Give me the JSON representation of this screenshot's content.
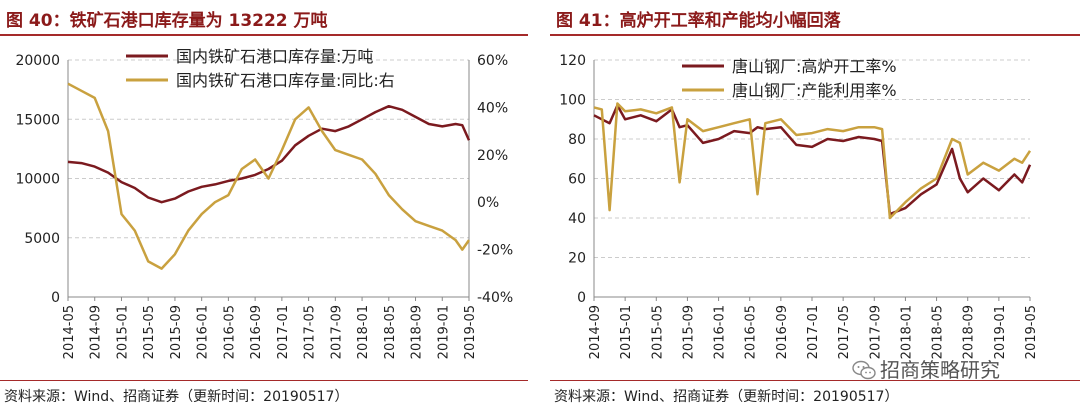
{
  "left": {
    "title": "图 40：铁矿石港口库存量为 13222 万吨",
    "source": "资料来源：Wind、招商证券（更新时间：20190517）"
  },
  "right": {
    "title": "图 41：高炉开工率和产能均小幅回落",
    "source": "资料来源：Wind、招商证券（更新时间：20190517）"
  },
  "watermark": "招商策略研究",
  "colors": {
    "primary": "#7b1a1f",
    "secondary": "#c9a13f",
    "title": "#8b1a1a",
    "grid": "#cccccc"
  },
  "chart_data": [
    {
      "type": "line",
      "title": "图 40：铁矿石港口库存量为 13222 万吨",
      "x_ticks": [
        "2014-05",
        "2014-09",
        "2015-01",
        "2015-05",
        "2015-09",
        "2016-01",
        "2016-05",
        "2016-09",
        "2017-01",
        "2017-05",
        "2017-09",
        "2018-01",
        "2018-05",
        "2018-09",
        "2019-01",
        "2019-05"
      ],
      "y_left": {
        "lim": [
          0,
          20000
        ],
        "ticks": [
          0,
          5000,
          10000,
          15000,
          20000
        ]
      },
      "y_right": {
        "lim": [
          -40,
          60
        ],
        "ticks": [
          "-40%",
          "-20%",
          "0%",
          "20%",
          "40%",
          "60%"
        ]
      },
      "legend_position": "top-right",
      "series": [
        {
          "name": "国内铁矿石港口库存量:万吨",
          "axis": "left",
          "color": "#7b1a1f",
          "x": [
            "2014-05",
            "2014-07",
            "2014-09",
            "2014-11",
            "2015-01",
            "2015-03",
            "2015-05",
            "2015-07",
            "2015-09",
            "2015-11",
            "2016-01",
            "2016-03",
            "2016-05",
            "2016-07",
            "2016-09",
            "2016-11",
            "2017-01",
            "2017-03",
            "2017-05",
            "2017-07",
            "2017-09",
            "2017-11",
            "2018-01",
            "2018-03",
            "2018-05",
            "2018-07",
            "2018-09",
            "2018-11",
            "2019-01",
            "2019-03",
            "2019-04",
            "2019-05"
          ],
          "values": [
            11400,
            11300,
            11000,
            10500,
            9700,
            9200,
            8400,
            8000,
            8300,
            8900,
            9300,
            9500,
            9800,
            10000,
            10300,
            10800,
            11500,
            12800,
            13600,
            14200,
            14000,
            14400,
            15000,
            15600,
            16100,
            15800,
            15200,
            14600,
            14400,
            14600,
            14500,
            13222
          ]
        },
        {
          "name": "国内铁矿石港口库存量:同比:右",
          "axis": "right",
          "color": "#c9a13f",
          "x": [
            "2014-05",
            "2014-07",
            "2014-09",
            "2014-11",
            "2015-01",
            "2015-03",
            "2015-05",
            "2015-07",
            "2015-09",
            "2015-11",
            "2016-01",
            "2016-03",
            "2016-05",
            "2016-07",
            "2016-09",
            "2016-11",
            "2017-01",
            "2017-03",
            "2017-05",
            "2017-07",
            "2017-09",
            "2017-11",
            "2018-01",
            "2018-03",
            "2018-05",
            "2018-07",
            "2018-09",
            "2018-11",
            "2019-01",
            "2019-03",
            "2019-04",
            "2019-05"
          ],
          "values": [
            50,
            47,
            44,
            30,
            -5,
            -12,
            -25,
            -28,
            -22,
            -12,
            -5,
            0,
            3,
            14,
            18,
            10,
            22,
            35,
            40,
            30,
            22,
            20,
            18,
            12,
            3,
            -3,
            -8,
            -10,
            -12,
            -16,
            -20,
            -16
          ]
        }
      ]
    },
    {
      "type": "line",
      "title": "图 41：高炉开工率和产能均小幅回落",
      "x_ticks": [
        "2014-09",
        "2015-01",
        "2015-05",
        "2015-09",
        "2016-01",
        "2016-05",
        "2016-09",
        "2017-01",
        "2017-05",
        "2017-09",
        "2018-01",
        "2018-05",
        "2018-09",
        "2019-01",
        "2019-05"
      ],
      "y_left": {
        "lim": [
          0,
          120
        ],
        "ticks": [
          0,
          20,
          40,
          60,
          80,
          100,
          120
        ]
      },
      "legend_position": "top-right",
      "series": [
        {
          "name": "唐山钢厂:高炉开工率%",
          "color": "#7b1a1f",
          "x": [
            "2014-09",
            "2014-10",
            "2014-11",
            "2014-12",
            "2015-01",
            "2015-03",
            "2015-05",
            "2015-07",
            "2015-08",
            "2015-09",
            "2015-11",
            "2016-01",
            "2016-03",
            "2016-05",
            "2016-06",
            "2016-07",
            "2016-09",
            "2016-11",
            "2017-01",
            "2017-03",
            "2017-05",
            "2017-07",
            "2017-09",
            "2017-10",
            "2017-11",
            "2018-01",
            "2018-03",
            "2018-05",
            "2018-07",
            "2018-08",
            "2018-09",
            "2018-11",
            "2019-01",
            "2019-03",
            "2019-04",
            "2019-05"
          ],
          "values": [
            92,
            90,
            88,
            97,
            90,
            92,
            89,
            95,
            86,
            87,
            78,
            80,
            84,
            83,
            86,
            85,
            86,
            77,
            76,
            80,
            79,
            81,
            80,
            79,
            42,
            45,
            52,
            57,
            75,
            60,
            53,
            60,
            54,
            62,
            58,
            67
          ]
        },
        {
          "name": "唐山钢厂:产能利用率%",
          "color": "#c9a13f",
          "x": [
            "2014-09",
            "2014-10",
            "2014-11",
            "2014-12",
            "2015-01",
            "2015-03",
            "2015-05",
            "2015-07",
            "2015-08",
            "2015-09",
            "2015-11",
            "2016-01",
            "2016-03",
            "2016-05",
            "2016-06",
            "2016-07",
            "2016-09",
            "2016-11",
            "2017-01",
            "2017-03",
            "2017-05",
            "2017-07",
            "2017-09",
            "2017-10",
            "2017-11",
            "2018-01",
            "2018-03",
            "2018-05",
            "2018-07",
            "2018-08",
            "2018-09",
            "2018-11",
            "2019-01",
            "2019-03",
            "2019-04",
            "2019-05"
          ],
          "values": [
            96,
            95,
            44,
            98,
            94,
            95,
            93,
            96,
            58,
            90,
            84,
            86,
            88,
            90,
            52,
            88,
            90,
            82,
            83,
            85,
            84,
            86,
            86,
            85,
            40,
            48,
            55,
            60,
            80,
            78,
            62,
            68,
            64,
            70,
            68,
            74
          ]
        }
      ]
    }
  ]
}
